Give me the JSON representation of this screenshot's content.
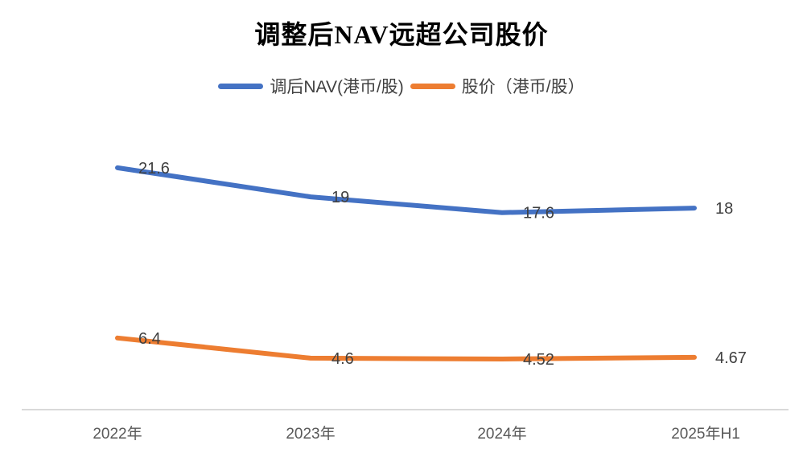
{
  "chart_data": {
    "type": "line",
    "title": "调整后NAV远超公司股价",
    "categories": [
      "2022年",
      "2023年",
      "2024年",
      "2025年H1"
    ],
    "series": [
      {
        "name": "调后NAV(港币/股)",
        "color": "#4472C4",
        "values": [
          21.6,
          19,
          17.6,
          18
        ]
      },
      {
        "name": "股价（港币/股）",
        "color": "#ED7D31",
        "values": [
          6.4,
          4.6,
          4.52,
          4.67
        ]
      }
    ],
    "ylim": [
      0,
      24
    ],
    "xlabel": "",
    "ylabel": "",
    "legend_position": "top",
    "gridlines": false,
    "data_labels": true,
    "colors": {
      "axis_line": "#D9D9D9",
      "axis_text": "#595959",
      "data_label_text": "#404040",
      "title_text": "#000000"
    }
  }
}
